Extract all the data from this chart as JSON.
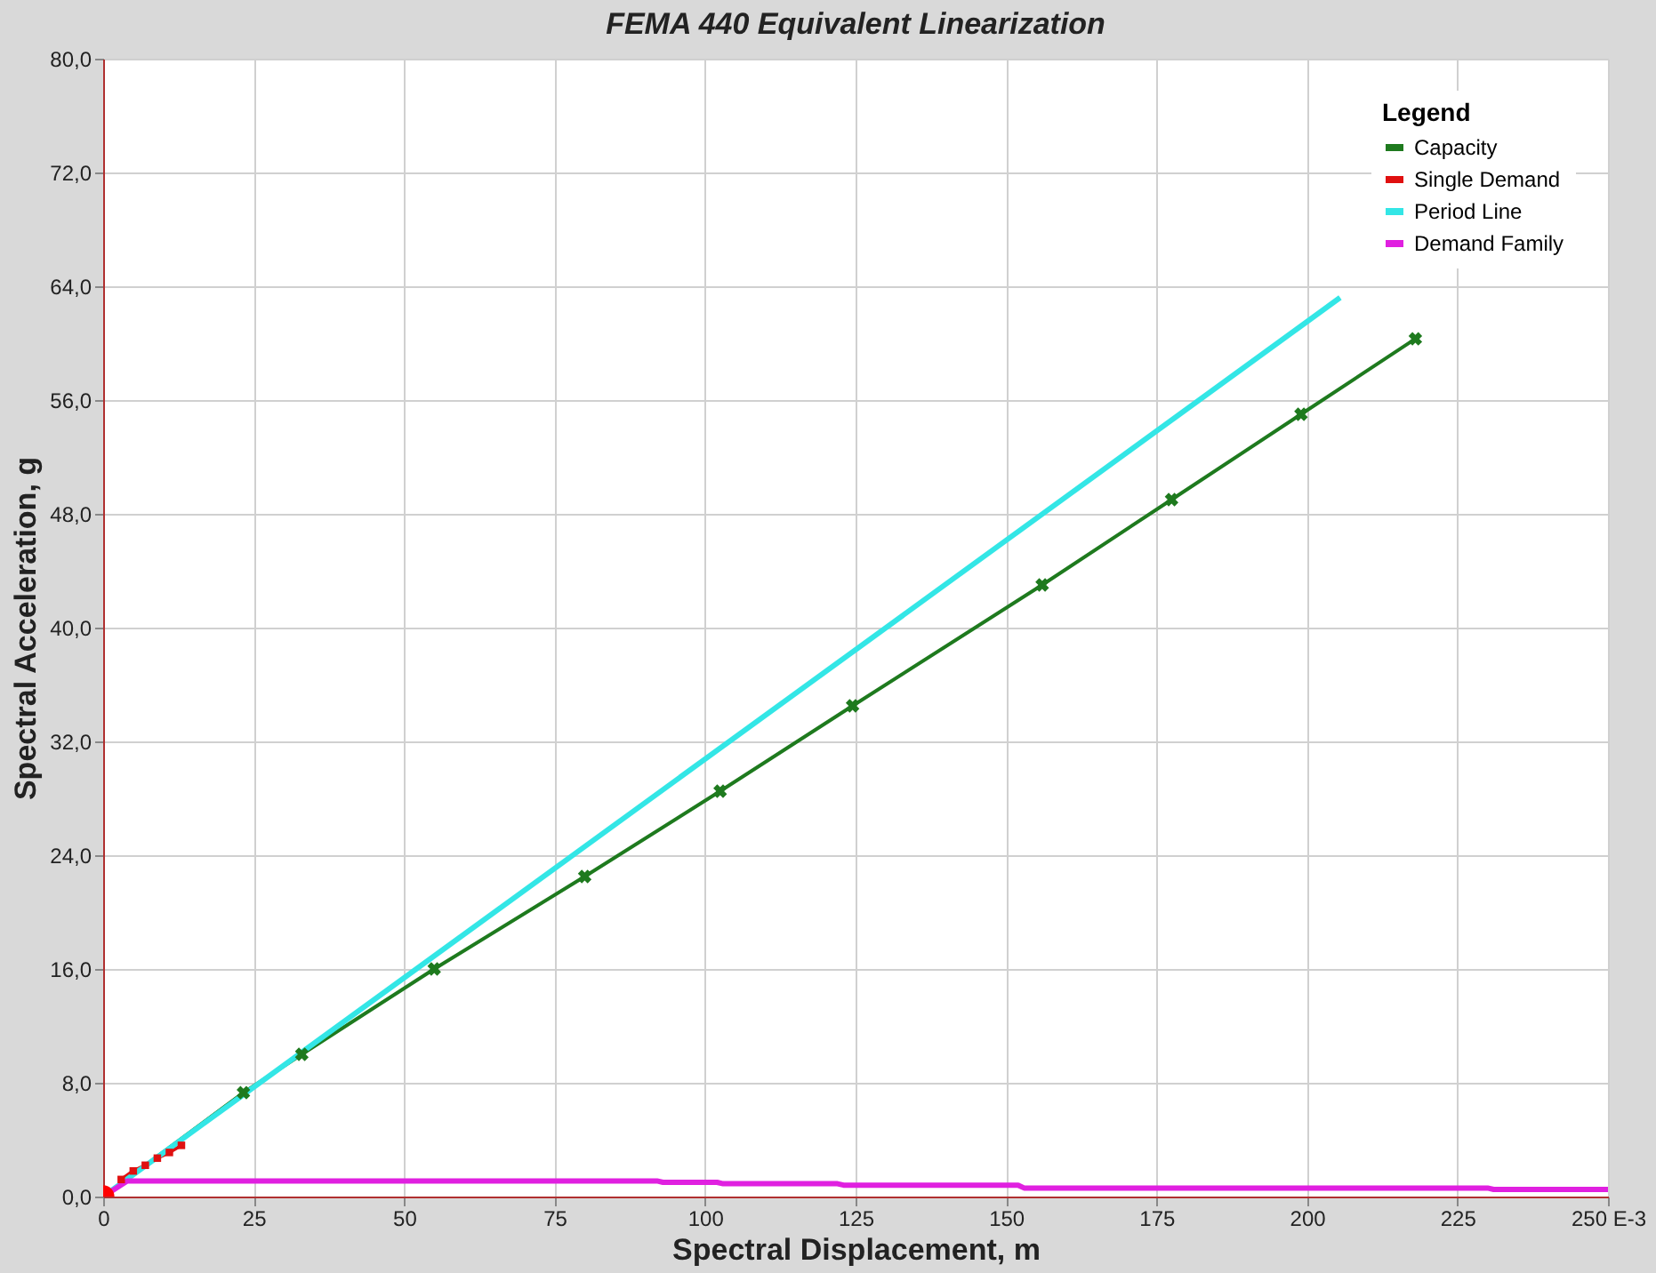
{
  "chart_data": {
    "type": "line",
    "title": "FEMA 440 Equivalent Linearization",
    "xlabel": "Spectral Displacement, m",
    "ylabel": "Spectral Acceleration, g",
    "legend_title": "Legend",
    "xlim": [
      0,
      250
    ],
    "xticks": [
      0,
      25,
      50,
      75,
      100,
      125,
      150,
      175,
      200,
      225,
      {
        "value": 250,
        "label": "250 E-3"
      }
    ],
    "ylim": [
      0,
      80
    ],
    "yticks": [
      {
        "value": 0,
        "label": "0,0"
      },
      {
        "value": 8,
        "label": "8,0"
      },
      {
        "value": 16,
        "label": "16,0"
      },
      {
        "value": 24,
        "label": "24,0"
      },
      {
        "value": 32,
        "label": "32,0"
      },
      {
        "value": 40,
        "label": "40,0"
      },
      {
        "value": 48,
        "label": "48,0"
      },
      {
        "value": 56,
        "label": "56,0"
      },
      {
        "value": 64,
        "label": "64,0"
      },
      {
        "value": 72,
        "label": "72,0"
      },
      {
        "value": 80,
        "label": "80,0"
      }
    ],
    "grid": true,
    "legend": "top right",
    "series": [
      {
        "name": "Capacity",
        "color": "#1e7a1e",
        "marker": "cross",
        "x": [
          0,
          23.3,
          33,
          55,
          80,
          102.5,
          124.5,
          156,
          177.5,
          199,
          218
        ],
        "values": [
          0,
          7.3,
          10,
          16,
          22.5,
          28.5,
          34.5,
          43,
          49,
          55,
          60.3
        ]
      },
      {
        "name": "Single Demand",
        "color": "#e01010",
        "marker": "square",
        "x": [
          3,
          5,
          7,
          9,
          11,
          13
        ],
        "values": [
          1.2,
          1.8,
          2.2,
          2.7,
          3.1,
          3.6
        ]
      },
      {
        "name": "Period Line",
        "color": "#33e6e6",
        "marker": "none",
        "x": [
          0,
          205.5
        ],
        "values": [
          0,
          63.2
        ]
      },
      {
        "name": "Demand Family",
        "color": "#e020e0",
        "marker": "none",
        "x": [
          0,
          4,
          92,
          93,
          102,
          103,
          122,
          123,
          152,
          153,
          230,
          231,
          250
        ],
        "values": [
          0,
          1.1,
          1.1,
          1.0,
          1.0,
          0.9,
          0.9,
          0.8,
          0.8,
          0.6,
          0.6,
          0.5,
          0.5
        ]
      },
      {
        "type": "scatter",
        "color": "#ff0000",
        "marker": "circle",
        "x": [
          0
        ],
        "values": [
          0
        ]
      }
    ]
  }
}
